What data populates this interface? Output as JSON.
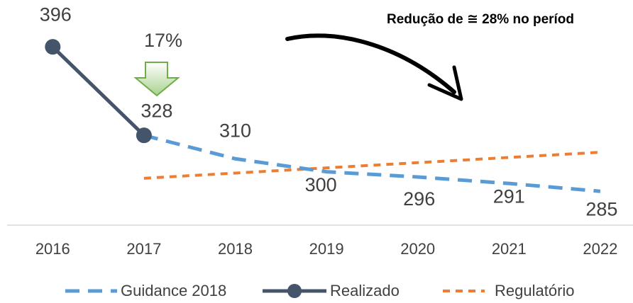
{
  "chart_data": {
    "type": "line",
    "categories": [
      "2016",
      "2017",
      "2018",
      "2019",
      "2020",
      "2021",
      "2022"
    ],
    "series": [
      {
        "name": "Guidance 2018",
        "color": "#5b9bd5",
        "values": [
          null,
          328,
          310,
          300,
          296,
          291,
          285
        ]
      },
      {
        "name": "Realizado",
        "color": "#44546a",
        "values": [
          396,
          328,
          null,
          null,
          null,
          null,
          null
        ]
      },
      {
        "name": "Regulatório",
        "color": "#ed7d31",
        "values": [
          null,
          295,
          299,
          303,
          307,
          311,
          315
        ]
      }
    ],
    "ylim": [
      259,
      432
    ],
    "annotations": [
      "17%",
      "Redução de ≅ 28% no períod"
    ],
    "legend": "bottom"
  }
}
